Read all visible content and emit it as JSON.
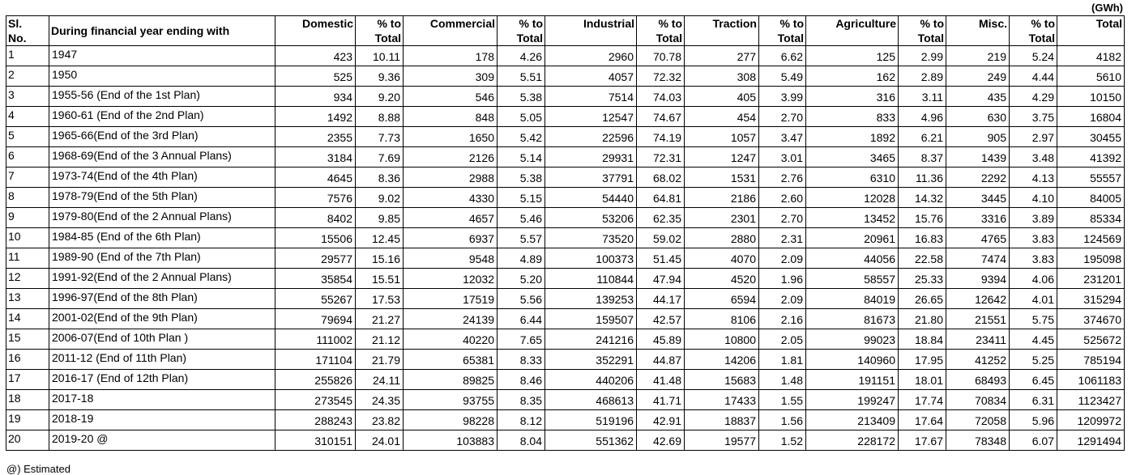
{
  "unit": "(GWh)",
  "headers": {
    "sl": [
      "Sl.",
      "No."
    ],
    "year": "During financial year ending with",
    "domestic": "Domestic",
    "pct": [
      "% to",
      "Total"
    ],
    "commercial": "Commercial",
    "industrial": "Industrial",
    "traction": "Traction",
    "agriculture": "Agriculture",
    "misc": "Misc.",
    "total": "Total"
  },
  "rows": [
    [
      "1",
      "1947",
      "423",
      "10.11",
      "178",
      "4.26",
      "2960",
      "70.78",
      "277",
      "6.62",
      "125",
      "2.99",
      "219",
      "5.24",
      "4182"
    ],
    [
      "2",
      "1950",
      "525",
      "9.36",
      "309",
      "5.51",
      "4057",
      "72.32",
      "308",
      "5.49",
      "162",
      "2.89",
      "249",
      "4.44",
      "5610"
    ],
    [
      "3",
      "1955-56 (End of the 1st Plan)",
      "934",
      "9.20",
      "546",
      "5.38",
      "7514",
      "74.03",
      "405",
      "3.99",
      "316",
      "3.11",
      "435",
      "4.29",
      "10150"
    ],
    [
      "4",
      "1960-61 (End of the 2nd Plan)",
      "1492",
      "8.88",
      "848",
      "5.05",
      "12547",
      "74.67",
      "454",
      "2.70",
      "833",
      "4.96",
      "630",
      "3.75",
      "16804"
    ],
    [
      "5",
      "1965-66(End of the 3rd Plan)",
      "2355",
      "7.73",
      "1650",
      "5.42",
      "22596",
      "74.19",
      "1057",
      "3.47",
      "1892",
      "6.21",
      "905",
      "2.97",
      "30455"
    ],
    [
      "6",
      "1968-69(End of the 3 Annual Plans)",
      "3184",
      "7.69",
      "2126",
      "5.14",
      "29931",
      "72.31",
      "1247",
      "3.01",
      "3465",
      "8.37",
      "1439",
      "3.48",
      "41392"
    ],
    [
      "7",
      "1973-74(End of the 4th Plan)",
      "4645",
      "8.36",
      "2988",
      "5.38",
      "37791",
      "68.02",
      "1531",
      "2.76",
      "6310",
      "11.36",
      "2292",
      "4.13",
      "55557"
    ],
    [
      "8",
      "1978-79(End of the 5th Plan)",
      "7576",
      "9.02",
      "4330",
      "5.15",
      "54440",
      "64.81",
      "2186",
      "2.60",
      "12028",
      "14.32",
      "3445",
      "4.10",
      "84005"
    ],
    [
      "9",
      "1979-80(End of the 2 Annual Plans)",
      "8402",
      "9.85",
      "4657",
      "5.46",
      "53206",
      "62.35",
      "2301",
      "2.70",
      "13452",
      "15.76",
      "3316",
      "3.89",
      "85334"
    ],
    [
      "10",
      "1984-85 (End of the 6th Plan)",
      "15506",
      "12.45",
      "6937",
      "5.57",
      "73520",
      "59.02",
      "2880",
      "2.31",
      "20961",
      "16.83",
      "4765",
      "3.83",
      "124569"
    ],
    [
      "11",
      "1989-90 (End of the 7th Plan)",
      "29577",
      "15.16",
      "9548",
      "4.89",
      "100373",
      "51.45",
      "4070",
      "2.09",
      "44056",
      "22.58",
      "7474",
      "3.83",
      "195098"
    ],
    [
      "12",
      "1991-92(End of the 2 Annual Plans)",
      "35854",
      "15.51",
      "12032",
      "5.20",
      "110844",
      "47.94",
      "4520",
      "1.96",
      "58557",
      "25.33",
      "9394",
      "4.06",
      "231201"
    ],
    [
      "13",
      "1996-97(End of the 8th Plan)",
      "55267",
      "17.53",
      "17519",
      "5.56",
      "139253",
      "44.17",
      "6594",
      "2.09",
      "84019",
      "26.65",
      "12642",
      "4.01",
      "315294"
    ],
    [
      "14",
      "2001-02(End of the 9th Plan)",
      "79694",
      "21.27",
      "24139",
      "6.44",
      "159507",
      "42.57",
      "8106",
      "2.16",
      "81673",
      "21.80",
      "21551",
      "5.75",
      "374670"
    ],
    [
      "15",
      "2006-07(End of 10th Plan )",
      "111002",
      "21.12",
      "40220",
      "7.65",
      "241216",
      "45.89",
      "10800",
      "2.05",
      "99023",
      "18.84",
      "23411",
      "4.45",
      "525672"
    ],
    [
      "16",
      "2011-12 (End of 11th Plan)",
      "171104",
      "21.79",
      "65381",
      "8.33",
      "352291",
      "44.87",
      "14206",
      "1.81",
      "140960",
      "17.95",
      "41252",
      "5.25",
      "785194"
    ],
    [
      "17",
      "2016-17 (End of 12th Plan)",
      "255826",
      "24.11",
      "89825",
      "8.46",
      "440206",
      "41.48",
      "15683",
      "1.48",
      "191151",
      "18.01",
      "68493",
      "6.45",
      "1061183"
    ],
    [
      "18",
      "2017-18",
      "273545",
      "24.35",
      "93755",
      "8.35",
      "468613",
      "41.71",
      "17433",
      "1.55",
      "199247",
      "17.74",
      "70834",
      "6.31",
      "1123427"
    ],
    [
      "19",
      "2018-19",
      "288243",
      "23.82",
      "98228",
      "8.12",
      "519196",
      "42.91",
      "18837",
      "1.56",
      "213409",
      "17.64",
      "72058",
      "5.96",
      "1209972"
    ],
    [
      "20",
      "2019-20 @",
      "310151",
      "24.01",
      "103883",
      "8.04",
      "551362",
      "42.69",
      "19577",
      "1.52",
      "228172",
      "17.67",
      "78348",
      "6.07",
      "1291494"
    ]
  ],
  "footnote": "@) Estimated"
}
